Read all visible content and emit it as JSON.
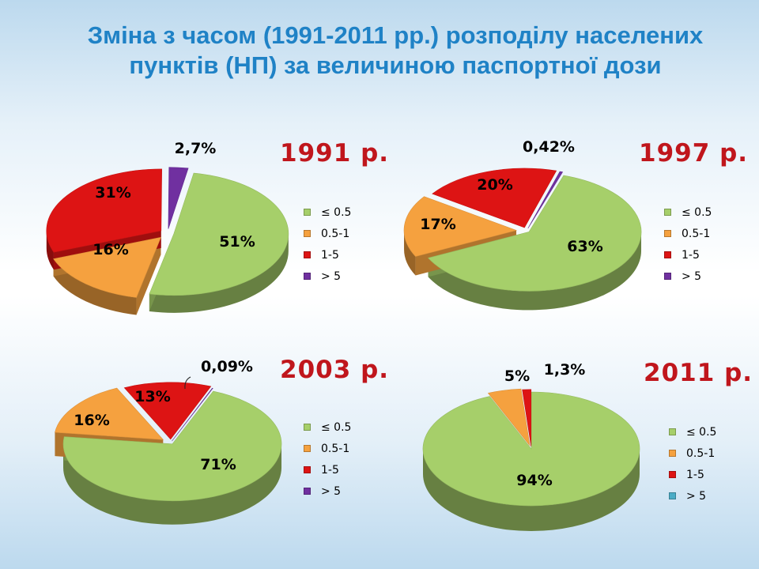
{
  "title": {
    "line1": "Зміна з часом (1991-2011 рр.) розподілу населених",
    "line2": "пунктів (НП) за величиною паспортної дози"
  },
  "categories": [
    "≤ 0.5",
    "0.5-1",
    "1-5",
    "> 5"
  ],
  "colors": {
    "le_0_5": "#a6cf6a",
    "c_0_5_1": "#f5a13f",
    "c_1_5": "#dd1414",
    "gt_5": "#7030a0",
    "gt_5_2011": "#4bacc6",
    "title": "#1f82c6",
    "year": "#c0161c"
  },
  "chart_data": [
    {
      "type": "pie",
      "title": "1991 р.",
      "categories": [
        "≤ 0.5",
        "0.5-1",
        "1-5",
        "> 5"
      ],
      "values": [
        51,
        16,
        31,
        2.7
      ],
      "labels": [
        "51%",
        "16%",
        "31%",
        "2,7%"
      ]
    },
    {
      "type": "pie",
      "title": "1997 р.",
      "categories": [
        "≤ 0.5",
        "0.5-1",
        "1-5",
        "> 5"
      ],
      "values": [
        63,
        17,
        20,
        0.42
      ],
      "labels": [
        "63%",
        "17%",
        "20%",
        "0,42%"
      ]
    },
    {
      "type": "pie",
      "title": "2003 р.",
      "categories": [
        "≤ 0.5",
        "0.5-1",
        "1-5",
        "> 5"
      ],
      "values": [
        71,
        16,
        13,
        0.09
      ],
      "labels": [
        "71%",
        "16%",
        "13%",
        "0,09%"
      ]
    },
    {
      "type": "pie",
      "title": "2011 р.",
      "categories": [
        "≤ 0.5",
        "0.5-1",
        "1-5",
        "> 5"
      ],
      "values": [
        94,
        5,
        1.3,
        0
      ],
      "labels": [
        "94%",
        "5%",
        "1,3%",
        ""
      ]
    }
  ]
}
